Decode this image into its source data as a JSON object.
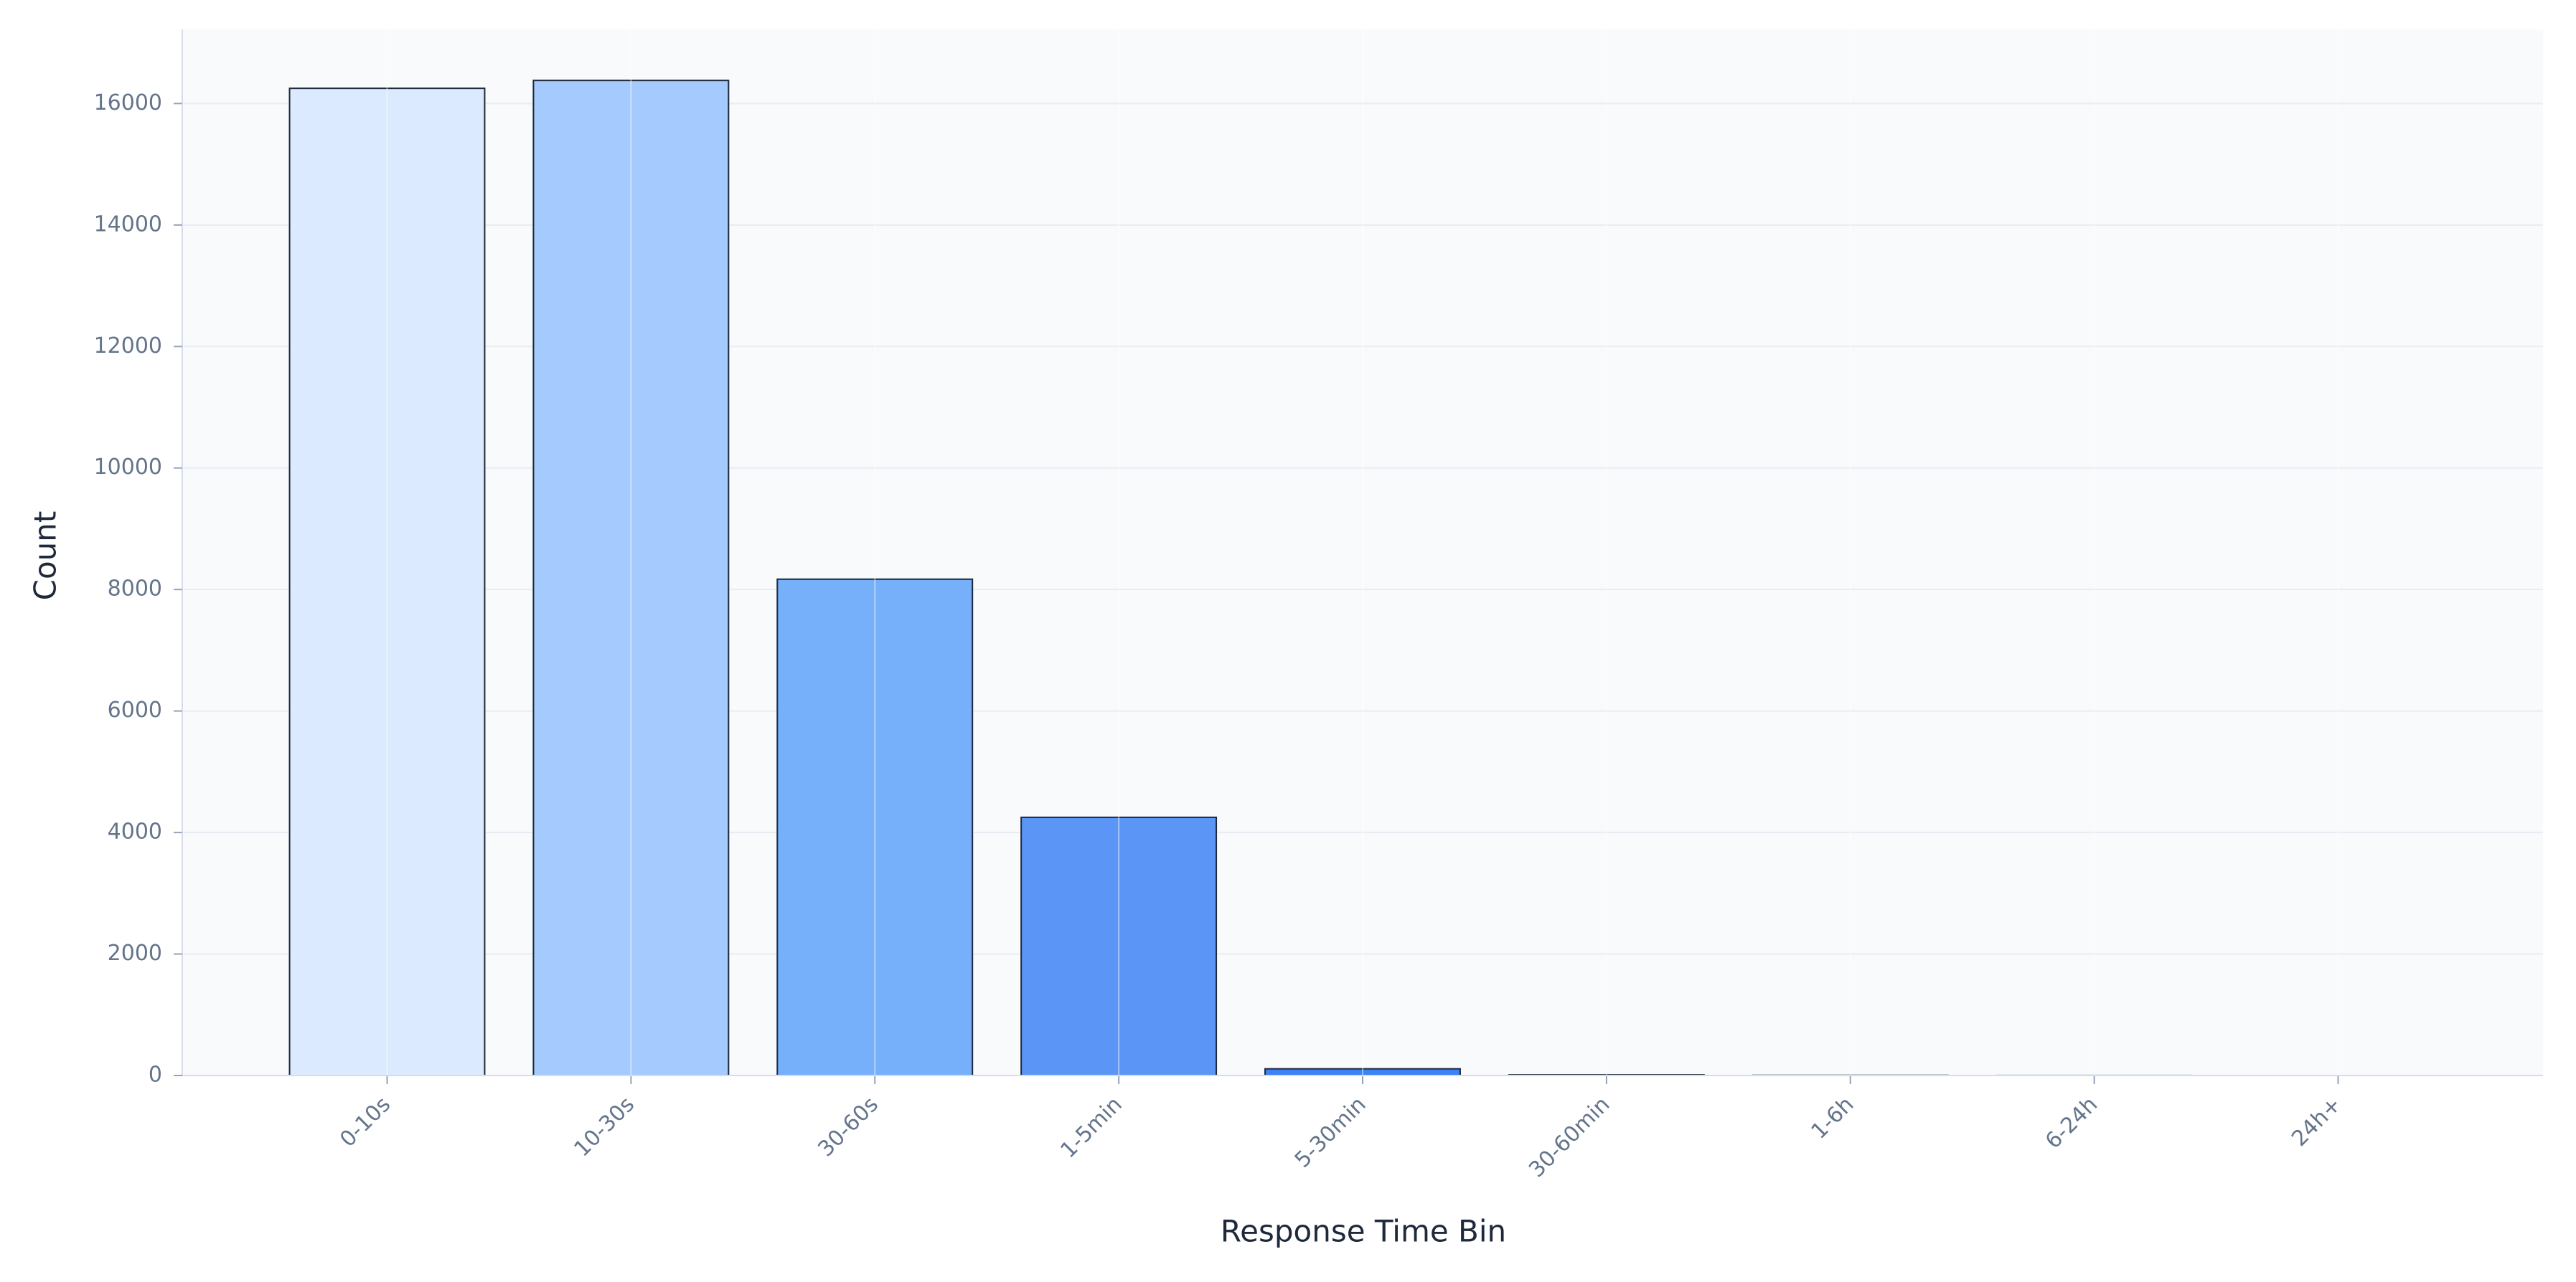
{
  "chart_data": {
    "type": "bar",
    "x_label": "Response Time Bin",
    "y_label": "Count",
    "categories": [
      "0-10s",
      "10-30s",
      "30-60s",
      "1-5min",
      "5-30min",
      "30-60min",
      "1-6h",
      "6-24h",
      "24h+"
    ],
    "values": [
      16250,
      16380,
      8170,
      4250,
      110,
      10,
      3,
      1,
      0
    ],
    "colors": [
      "#dbeafe",
      "#a4cafe",
      "#76b0fb",
      "#5b96f7",
      "#3b82f6",
      "#2563eb",
      "#1d4ed8",
      "#1e40af",
      "#1e3a8a"
    ],
    "edge_color": "#1e293b",
    "ylim": [
      0,
      17220
    ],
    "yticks": [
      0,
      2000,
      4000,
      6000,
      8000,
      10000,
      12000,
      14000,
      16000
    ],
    "grid": true
  }
}
